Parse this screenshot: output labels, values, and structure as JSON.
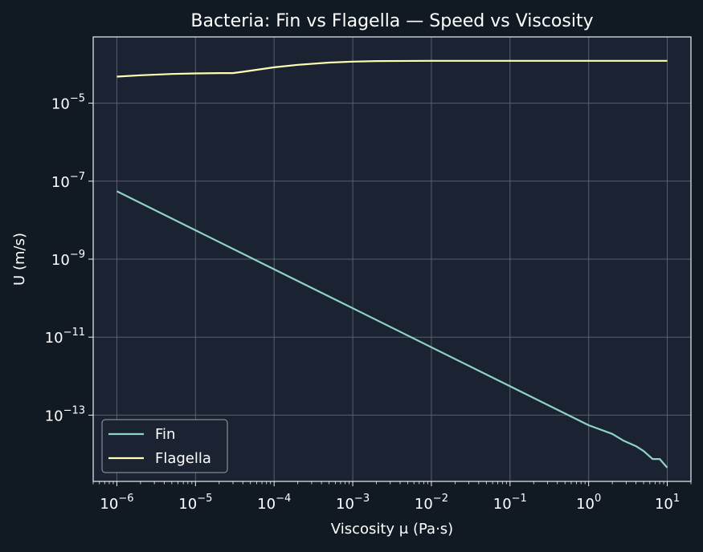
{
  "chart_data": {
    "type": "line",
    "title": "Bacteria: Fin vs Flagella — Speed vs Viscosity",
    "xlabel": "Viscosity μ (Pa·s)",
    "ylabel": "U (m/s)",
    "x_scale": "log",
    "y_scale": "log",
    "xlim": [
      5e-07,
      20
    ],
    "ylim": [
      2e-15,
      0.0005
    ],
    "x_ticks": [
      {
        "value": 1e-06,
        "base": "10",
        "exp": "−6"
      },
      {
        "value": 1e-05,
        "base": "10",
        "exp": "−5"
      },
      {
        "value": 0.0001,
        "base": "10",
        "exp": "−4"
      },
      {
        "value": 0.001,
        "base": "10",
        "exp": "−3"
      },
      {
        "value": 0.01,
        "base": "10",
        "exp": "−2"
      },
      {
        "value": 0.1,
        "base": "10",
        "exp": "−1"
      },
      {
        "value": 1,
        "base": "10",
        "exp": "0"
      },
      {
        "value": 10,
        "base": "10",
        "exp": "1"
      }
    ],
    "y_ticks": [
      {
        "value": 1e-05,
        "base": "10",
        "exp": "−5"
      },
      {
        "value": 1e-07,
        "base": "10",
        "exp": "−7"
      },
      {
        "value": 1e-09,
        "base": "10",
        "exp": "−9"
      },
      {
        "value": 1e-11,
        "base": "10",
        "exp": "−11"
      },
      {
        "value": 1e-13,
        "base": "10",
        "exp": "−13"
      }
    ],
    "grid": true,
    "legend_position": "lower-left",
    "series": [
      {
        "name": "Fin",
        "color": "#8dd3c7",
        "x": [
          1e-06,
          1e-05,
          0.0001,
          0.001,
          0.01,
          0.1,
          1,
          2,
          2.8,
          4,
          5,
          6.5,
          8,
          10
        ],
        "y": [
          5.5e-08,
          5.5e-09,
          5.5e-10,
          5.5e-11,
          5.5e-12,
          5.5e-13,
          5.5e-14,
          3.3e-14,
          2.2e-14,
          1.6e-14,
          1.2e-14,
          7.5e-15,
          7.5e-15,
          4.5e-15
        ]
      },
      {
        "name": "Flagella",
        "color": "#ffffb3",
        "x": [
          1e-06,
          2e-06,
          5e-06,
          1e-05,
          2e-05,
          3e-05,
          5e-05,
          0.0001,
          0.0002,
          0.0005,
          0.001,
          0.002,
          0.01,
          0.1,
          1,
          10
        ],
        "y": [
          4.8e-05,
          5.2e-05,
          5.6e-05,
          5.8e-05,
          5.9e-05,
          5.9e-05,
          6.8e-05,
          8.3e-05,
          9.6e-05,
          0.00011,
          0.000116,
          0.00012,
          0.000122,
          0.000122,
          0.000122,
          0.000122
        ]
      }
    ]
  },
  "colors": {
    "page_bg": "#111a23",
    "plot_bg": "#1b2333",
    "axes_edge": "#e9eef2",
    "grid": "#5e6675",
    "text": "#ffffff"
  }
}
